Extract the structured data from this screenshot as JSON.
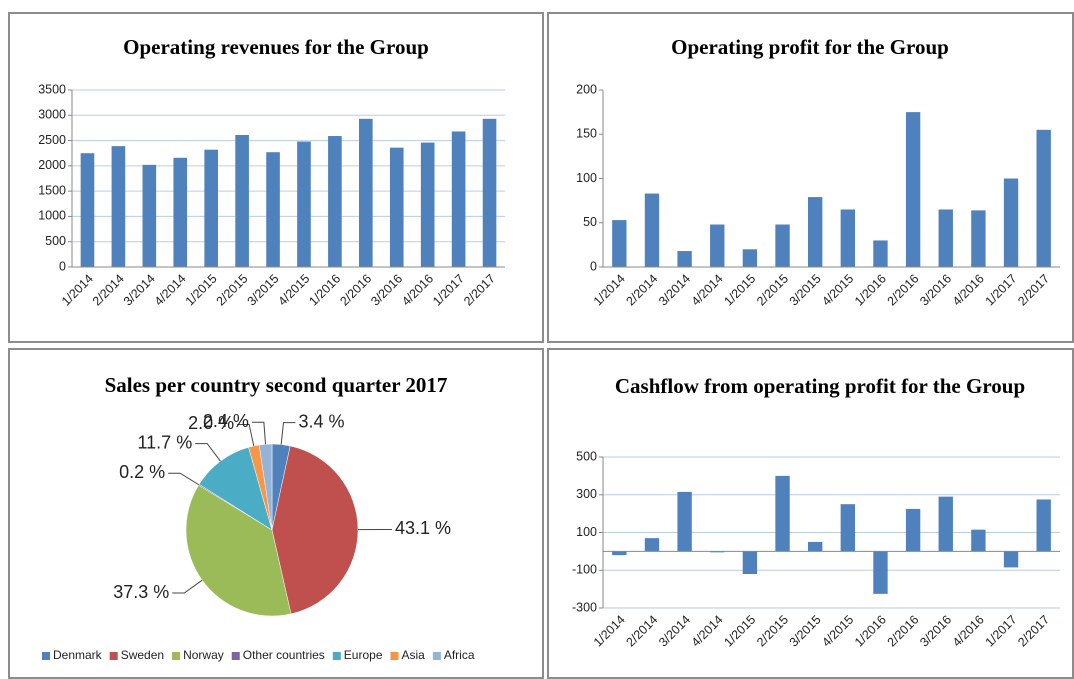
{
  "chart_data": [
    {
      "type": "bar",
      "title": "Operating revenues for the Group",
      "color": "#4f81bd",
      "grid": true,
      "categories": [
        "1/2014",
        "2/2014",
        "3/2014",
        "4/2014",
        "1/2015",
        "2/2015",
        "3/2015",
        "4/2015",
        "1/2016",
        "2/2016",
        "3/2016",
        "4/2016",
        "1/2017",
        "2/2017"
      ],
      "values": [
        2250,
        2390,
        2020,
        2160,
        2320,
        2610,
        2270,
        2480,
        2590,
        2930,
        2360,
        2460,
        2680,
        2930
      ],
      "ylim": [
        0,
        3500
      ],
      "yticks": [
        0,
        500,
        1000,
        1500,
        2000,
        2500,
        3000,
        3500
      ]
    },
    {
      "type": "bar",
      "title": "Operating profit for the Group",
      "color": "#4f81bd",
      "grid": false,
      "categories": [
        "1/2014",
        "2/2014",
        "3/2014",
        "4/2014",
        "1/2015",
        "2/2015",
        "3/2015",
        "4/2015",
        "1/2016",
        "2/2016",
        "3/2016",
        "4/2016",
        "1/2017",
        "2/2017"
      ],
      "values": [
        53,
        83,
        18,
        48,
        20,
        48,
        79,
        65,
        30,
        175,
        65,
        64,
        100,
        155
      ],
      "ylim": [
        0,
        200
      ],
      "yticks": [
        0,
        50,
        100,
        150,
        200
      ]
    },
    {
      "type": "pie",
      "title": "Sales per country second quarter 2017",
      "legend": "bottom",
      "categories": [
        "Denmark",
        "Sweden",
        "Norway",
        "Other countries",
        "Europe",
        "Asia",
        "Africa"
      ],
      "values": [
        3.4,
        43.1,
        37.3,
        0.2,
        11.7,
        2.0,
        2.4
      ],
      "value_labels": [
        "3.4 %",
        "43.1 %",
        "37.3 %",
        "0.2 %",
        "11.7 %",
        "2.0 %",
        "2.4 %"
      ],
      "colors": [
        "#4f81bd",
        "#c0504d",
        "#9bbb59",
        "#8064a2",
        "#4bacc6",
        "#f79646",
        "#95b3d7"
      ]
    },
    {
      "type": "bar",
      "title": "Cashflow from operating profit for the Group",
      "color": "#4f81bd",
      "grid": true,
      "categories": [
        "1/2014",
        "2/2014",
        "3/2014",
        "4/2014",
        "1/2015",
        "2/2015",
        "3/2015",
        "4/2015",
        "1/2016",
        "2/2016",
        "3/2016",
        "4/2016",
        "1/2017",
        "2/2017"
      ],
      "values": [
        -20,
        70,
        315,
        -5,
        -120,
        400,
        50,
        250,
        -225,
        225,
        290,
        115,
        -85,
        275
      ],
      "ylim": [
        -300,
        500
      ],
      "yticks": [
        -300,
        -100,
        100,
        300,
        500
      ]
    }
  ]
}
